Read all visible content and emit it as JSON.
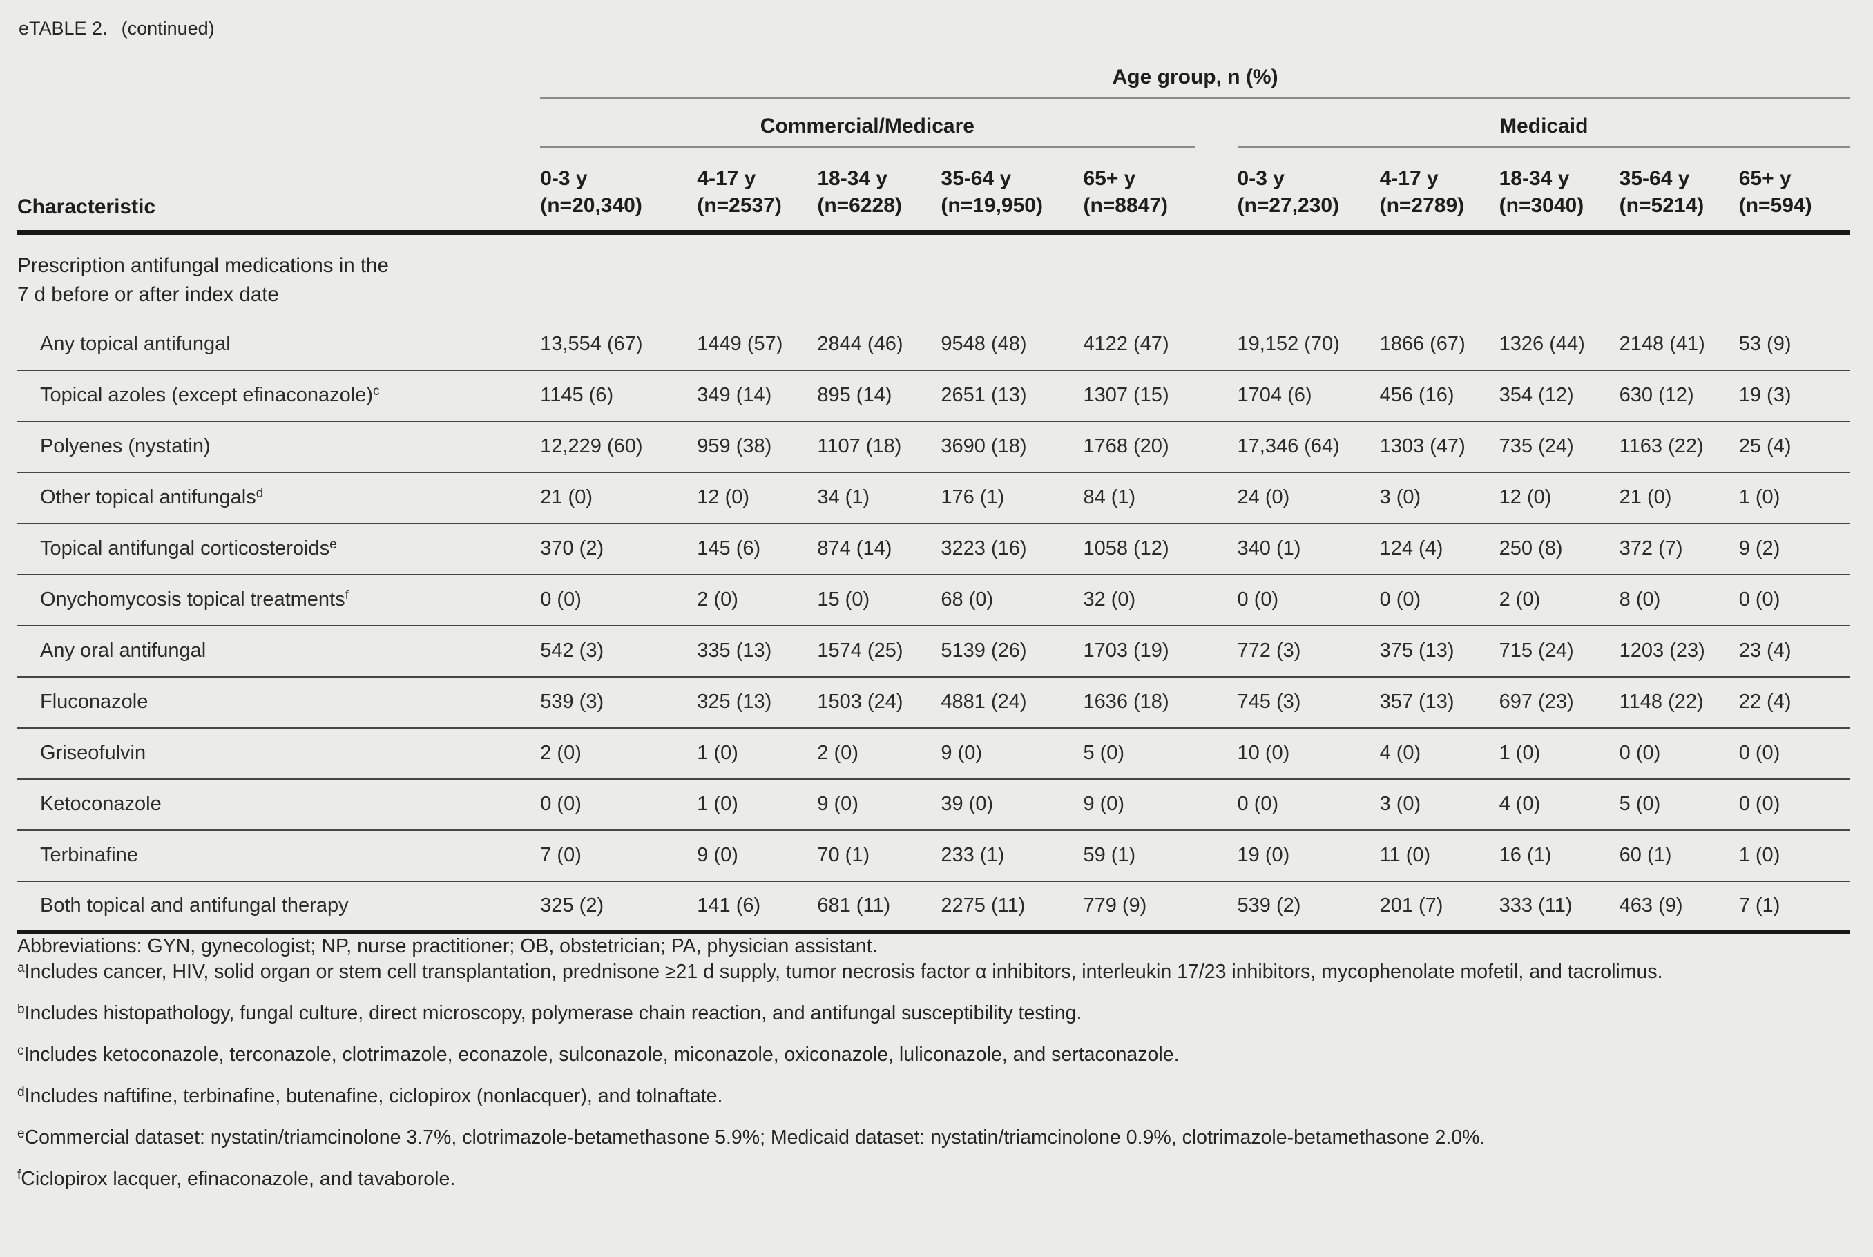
{
  "title": {
    "prefix": "eTABLE 2.",
    "suffix": "(continued)"
  },
  "table": {
    "spanner": "Age group, n (%)",
    "char_header": "Characteristic",
    "groups": [
      {
        "label": "Commercial/Medicare",
        "columns": [
          {
            "age": "0-3 y",
            "n": "(n=20,340)"
          },
          {
            "age": "4-17 y",
            "n": "(n=2537)"
          },
          {
            "age": "18-34 y",
            "n": "(n=6228)"
          },
          {
            "age": "35-64 y",
            "n": "(n=19,950)"
          },
          {
            "age": "65+ y",
            "n": "(n=8847)"
          }
        ]
      },
      {
        "label": "Medicaid",
        "columns": [
          {
            "age": "0-3 y",
            "n": "(n=27,230)"
          },
          {
            "age": "4-17 y",
            "n": "(n=2789)"
          },
          {
            "age": "18-34 y",
            "n": "(n=3040)"
          },
          {
            "age": "35-64 y",
            "n": "(n=5214)"
          },
          {
            "age": "65+ y",
            "n": "(n=594)"
          }
        ]
      }
    ],
    "section": {
      "line1": "Prescription antifungal medications in the",
      "line2": "7 d before or after index date"
    },
    "rows": [
      {
        "label": "Any topical antifungal",
        "sup": "",
        "values": [
          "13,554 (67)",
          "1449 (57)",
          "2844 (46)",
          "9548 (48)",
          "4122 (47)",
          "19,152 (70)",
          "1866 (67)",
          "1326 (44)",
          "2148 (41)",
          "53 (9)"
        ]
      },
      {
        "label": "Topical azoles (except efinaconazole)",
        "sup": "c",
        "values": [
          "1145 (6)",
          "349 (14)",
          "895 (14)",
          "2651 (13)",
          "1307 (15)",
          "1704 (6)",
          "456 (16)",
          "354 (12)",
          "630 (12)",
          "19 (3)"
        ]
      },
      {
        "label": "Polyenes (nystatin)",
        "sup": "",
        "values": [
          "12,229 (60)",
          "959 (38)",
          "1107 (18)",
          "3690 (18)",
          "1768 (20)",
          "17,346 (64)",
          "1303 (47)",
          "735 (24)",
          "1163 (22)",
          "25 (4)"
        ]
      },
      {
        "label": "Other topical antifungals",
        "sup": "d",
        "values": [
          "21 (0)",
          "12 (0)",
          "34 (1)",
          "176 (1)",
          "84 (1)",
          "24 (0)",
          "3 (0)",
          "12 (0)",
          "21 (0)",
          "1 (0)"
        ]
      },
      {
        "label": "Topical antifungal corticosteroids",
        "sup": "e",
        "values": [
          "370 (2)",
          "145 (6)",
          "874 (14)",
          "3223 (16)",
          "1058 (12)",
          "340 (1)",
          "124 (4)",
          "250 (8)",
          "372 (7)",
          "9 (2)"
        ]
      },
      {
        "label": "Onychomycosis topical treatments",
        "sup": "f",
        "values": [
          "0 (0)",
          "2 (0)",
          "15 (0)",
          "68 (0)",
          "32 (0)",
          "0 (0)",
          "0 (0)",
          "2 (0)",
          "8 (0)",
          "0 (0)"
        ]
      },
      {
        "label": "Any oral antifungal",
        "sup": "",
        "values": [
          "542 (3)",
          "335 (13)",
          "1574 (25)",
          "5139 (26)",
          "1703 (19)",
          "772 (3)",
          "375 (13)",
          "715 (24)",
          "1203 (23)",
          "23 (4)"
        ]
      },
      {
        "label": "Fluconazole",
        "sup": "",
        "values": [
          "539 (3)",
          "325 (13)",
          "1503 (24)",
          "4881 (24)",
          "1636 (18)",
          "745 (3)",
          "357 (13)",
          "697 (23)",
          "1148 (22)",
          "22 (4)"
        ]
      },
      {
        "label": "Griseofulvin",
        "sup": "",
        "values": [
          "2 (0)",
          "1 (0)",
          "2 (0)",
          "9 (0)",
          "5 (0)",
          "10 (0)",
          "4 (0)",
          "1 (0)",
          "0 (0)",
          "0 (0)"
        ]
      },
      {
        "label": "Ketoconazole",
        "sup": "",
        "values": [
          "0 (0)",
          "1 (0)",
          "9 (0)",
          "39 (0)",
          "9 (0)",
          "0 (0)",
          "3 (0)",
          "4 (0)",
          "5 (0)",
          "0 (0)"
        ]
      },
      {
        "label": "Terbinafine",
        "sup": "",
        "values": [
          "7 (0)",
          "9 (0)",
          "70 (1)",
          "233 (1)",
          "59 (1)",
          "19 (0)",
          "11 (0)",
          "16 (1)",
          "60 (1)",
          "1 (0)"
        ]
      },
      {
        "label": "Both topical and antifungal therapy",
        "sup": "",
        "values": [
          "325 (2)",
          "141 (6)",
          "681 (11)",
          "2275 (11)",
          "779 (9)",
          "539 (2)",
          "201 (7)",
          "333 (11)",
          "463 (9)",
          "7 (1)"
        ]
      }
    ]
  },
  "footnotes": {
    "abbreviations": "Abbreviations: GYN, gynecologist; NP, nurse practitioner; OB, obstetrician; PA, physician assistant.",
    "items": [
      {
        "sup": "a",
        "text": "Includes cancer, HIV, solid organ or stem cell transplantation, prednisone ≥21 d supply, tumor necrosis factor α inhibitors, interleukin 17/23 inhibitors, mycophenolate mofetil, and tacrolimus."
      },
      {
        "sup": "b",
        "text": "Includes histopathology, fungal culture, direct microscopy, polymerase chain reaction, and antifungal susceptibility testing."
      },
      {
        "sup": "c",
        "text": "Includes ketoconazole, terconazole, clotrimazole, econazole, sulconazole, miconazole, oxiconazole, luliconazole, and sertaconazole."
      },
      {
        "sup": "d",
        "text": "Includes naftifine, terbinafine, butenafine, ciclopirox (nonlacquer), and tolnaftate."
      },
      {
        "sup": "e",
        "text": "Commercial dataset: nystatin/triamcinolone 3.7%, clotrimazole-betamethasone 5.9%; Medicaid dataset: nystatin/triamcinolone 0.9%, clotrimazole-betamethasone 2.0%."
      },
      {
        "sup": "f",
        "text": "Ciclopirox lacquer, efinaconazole, and tavaborole."
      }
    ]
  },
  "colors": {
    "background": "#ebebea",
    "text": "#1e1e1e",
    "rule_light": "#8c8c8c",
    "rule_dark": "#181818",
    "row_rule": "#474747"
  }
}
